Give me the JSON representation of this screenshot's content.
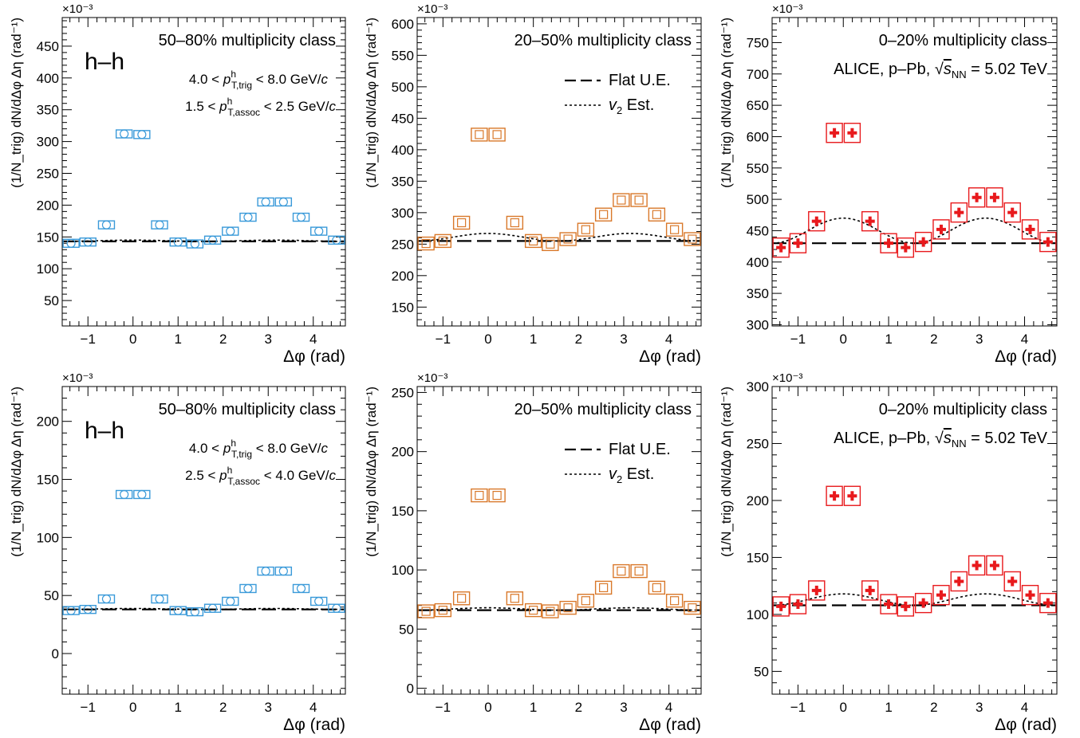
{
  "figure": {
    "x_label": "Δφ (rad)",
    "y_label": "(1/N_trig) dN/dΔφ Δη (rad⁻¹)",
    "multiplier": "×10⁻³",
    "x_ticks": [
      "−1",
      "0",
      "1",
      "2",
      "3",
      "4"
    ],
    "legend": {
      "flat": "Flat U.E.",
      "v2": "v₂ Est."
    },
    "system_label": "ALICE, p–Pb, √s_NN = 5.02 TeV",
    "hh_label": "h–h",
    "colors": {
      "50-80": "#3a9ad9",
      "20-50": "#d9782a",
      "0-20": "#e8191c"
    }
  },
  "chart_data": [
    {
      "type": "scatter",
      "panel": "top-left",
      "class_label": "50–80% multiplicity class",
      "trig_label": "4.0 < p^h_T,trig < 8.0 GeV/c",
      "assoc_label": "1.5 < p^h_T,assoc < 2.5 GeV/c",
      "xlabel": "Δφ (rad)",
      "ylabel": "(1/N_trig) dN/dΔφ Δη (rad⁻¹)",
      "xlim": [
        -1.5708,
        4.7124
      ],
      "ylim": [
        10,
        495
      ],
      "yticks": [
        50,
        100,
        150,
        200,
        250,
        300,
        350,
        400,
        450
      ],
      "x": [
        -1.3744,
        -1.0,
        -0.589,
        -0.1963,
        0.1963,
        0.589,
        1.0,
        1.3744,
        1.7671,
        2.1598,
        2.5525,
        2.9452,
        3.3379,
        3.7306,
        4.1233,
        4.516
      ],
      "values": [
        140,
        142,
        169,
        312,
        311,
        169,
        142,
        139,
        145,
        159,
        181,
        205,
        205,
        181,
        159,
        145
      ],
      "marker": "open-circle",
      "flat_ue": 143,
      "v2_amp": 1,
      "legend": [],
      "grid": false
    },
    {
      "type": "scatter",
      "panel": "top-middle",
      "class_label": "20–50% multiplicity class",
      "xlabel": "Δφ (rad)",
      "ylabel": "(1/N_trig) dN/dΔφ Δη (rad⁻¹)",
      "xlim": [
        -1.5708,
        4.7124
      ],
      "ylim": [
        120,
        610
      ],
      "yticks": [
        150,
        200,
        250,
        300,
        350,
        400,
        450,
        500,
        550,
        600
      ],
      "x": [
        -1.3744,
        -1.0,
        -0.589,
        -0.1963,
        0.1963,
        0.589,
        1.0,
        1.3744,
        1.7671,
        2.1598,
        2.5525,
        2.9452,
        3.3379,
        3.7306,
        4.1233,
        4.516
      ],
      "values": [
        251,
        255,
        284,
        424,
        424,
        284,
        255,
        250,
        258,
        273,
        297,
        320,
        320,
        297,
        273,
        258
      ],
      "marker": "open-square",
      "flat_ue": 255,
      "v2_amp": 6,
      "legend": [
        "Flat U.E.",
        "v₂ Est."
      ],
      "grid": false
    },
    {
      "type": "scatter",
      "panel": "top-right",
      "class_label": "0–20% multiplicity class",
      "system_label": "ALICE, p–Pb, √s_NN = 5.02 TeV",
      "xlabel": "Δφ (rad)",
      "ylabel": "(1/N_trig) dN/dΔφ Δη (rad⁻¹)",
      "xlim": [
        -1.5708,
        4.7124
      ],
      "ylim": [
        298,
        790
      ],
      "yticks": [
        300,
        350,
        400,
        450,
        500,
        550,
        600,
        650,
        700,
        750
      ],
      "x": [
        -1.3744,
        -1.0,
        -0.589,
        -0.1963,
        0.1963,
        0.589,
        1.0,
        1.3744,
        1.7671,
        2.1598,
        2.5525,
        2.9452,
        3.3379,
        3.7306,
        4.1233,
        4.516
      ],
      "values": [
        423,
        430,
        465,
        606,
        606,
        465,
        430,
        423,
        432,
        452,
        479,
        503,
        503,
        479,
        452,
        432
      ],
      "marker": "filled-cross",
      "flat_ue": 430,
      "v2_amp": 20,
      "legend": [],
      "grid": false
    },
    {
      "type": "scatter",
      "panel": "bottom-left",
      "class_label": "50–80% multiplicity class",
      "trig_label": "4.0 < p^h_T,trig < 8.0 GeV/c",
      "assoc_label": "2.5 < p^h_T,assoc < 4.0 GeV/c",
      "xlabel": "Δφ (rad)",
      "ylabel": "(1/N_trig) dN/dΔφ Δη (rad⁻¹)",
      "xlim": [
        -1.5708,
        4.7124
      ],
      "ylim": [
        -35,
        230
      ],
      "yticks": [
        0,
        50,
        100,
        150,
        200
      ],
      "x": [
        -1.3744,
        -1.0,
        -0.589,
        -0.1963,
        0.1963,
        0.589,
        1.0,
        1.3744,
        1.7671,
        2.1598,
        2.5525,
        2.9452,
        3.3379,
        3.7306,
        4.1233,
        4.516
      ],
      "values": [
        37,
        38,
        47,
        137,
        137,
        47,
        37,
        36,
        39,
        45,
        56,
        71,
        71,
        56,
        45,
        39
      ],
      "marker": "open-circle",
      "flat_ue": 38,
      "v2_amp": 0.4,
      "legend": [],
      "grid": false
    },
    {
      "type": "scatter",
      "panel": "bottom-middle",
      "class_label": "20–50% multiplicity class",
      "xlabel": "Δφ (rad)",
      "ylabel": "(1/N_trig) dN/dΔφ Δη (rad⁻¹)",
      "xlim": [
        -1.5708,
        4.7124
      ],
      "ylim": [
        -5,
        255
      ],
      "yticks": [
        0,
        50,
        100,
        150,
        200,
        250
      ],
      "x": [
        -1.3744,
        -1.0,
        -0.589,
        -0.1963,
        0.1963,
        0.589,
        1.0,
        1.3744,
        1.7671,
        2.1598,
        2.5525,
        2.9452,
        3.3379,
        3.7306,
        4.1233,
        4.516
      ],
      "values": [
        65,
        66,
        76,
        163,
        163,
        76,
        66,
        65,
        68,
        74,
        85,
        99,
        99,
        85,
        74,
        68
      ],
      "marker": "open-square",
      "flat_ue": 66,
      "v2_amp": 1,
      "legend": [
        "Flat U.E.",
        "v₂ Est."
      ],
      "grid": false
    },
    {
      "type": "scatter",
      "panel": "bottom-right",
      "class_label": "0–20% multiplicity class",
      "system_label": "ALICE, p–Pb, √s_NN = 5.02 TeV",
      "xlabel": "Δφ (rad)",
      "ylabel": "(1/N_trig) dN/dΔφ Δη (rad⁻¹)",
      "xlim": [
        -1.5708,
        4.7124
      ],
      "ylim": [
        30,
        300
      ],
      "yticks": [
        50,
        100,
        150,
        200,
        250,
        300
      ],
      "x": [
        -1.3744,
        -1.0,
        -0.589,
        -0.1963,
        0.1963,
        0.589,
        1.0,
        1.3744,
        1.7671,
        2.1598,
        2.5525,
        2.9452,
        3.3379,
        3.7306,
        4.1233,
        4.516
      ],
      "values": [
        107,
        109,
        121,
        204,
        204,
        121,
        109,
        107,
        110,
        117,
        129,
        143,
        143,
        129,
        117,
        110
      ],
      "marker": "filled-cross",
      "flat_ue": 108,
      "v2_amp": 5,
      "legend": [],
      "grid": false
    }
  ]
}
